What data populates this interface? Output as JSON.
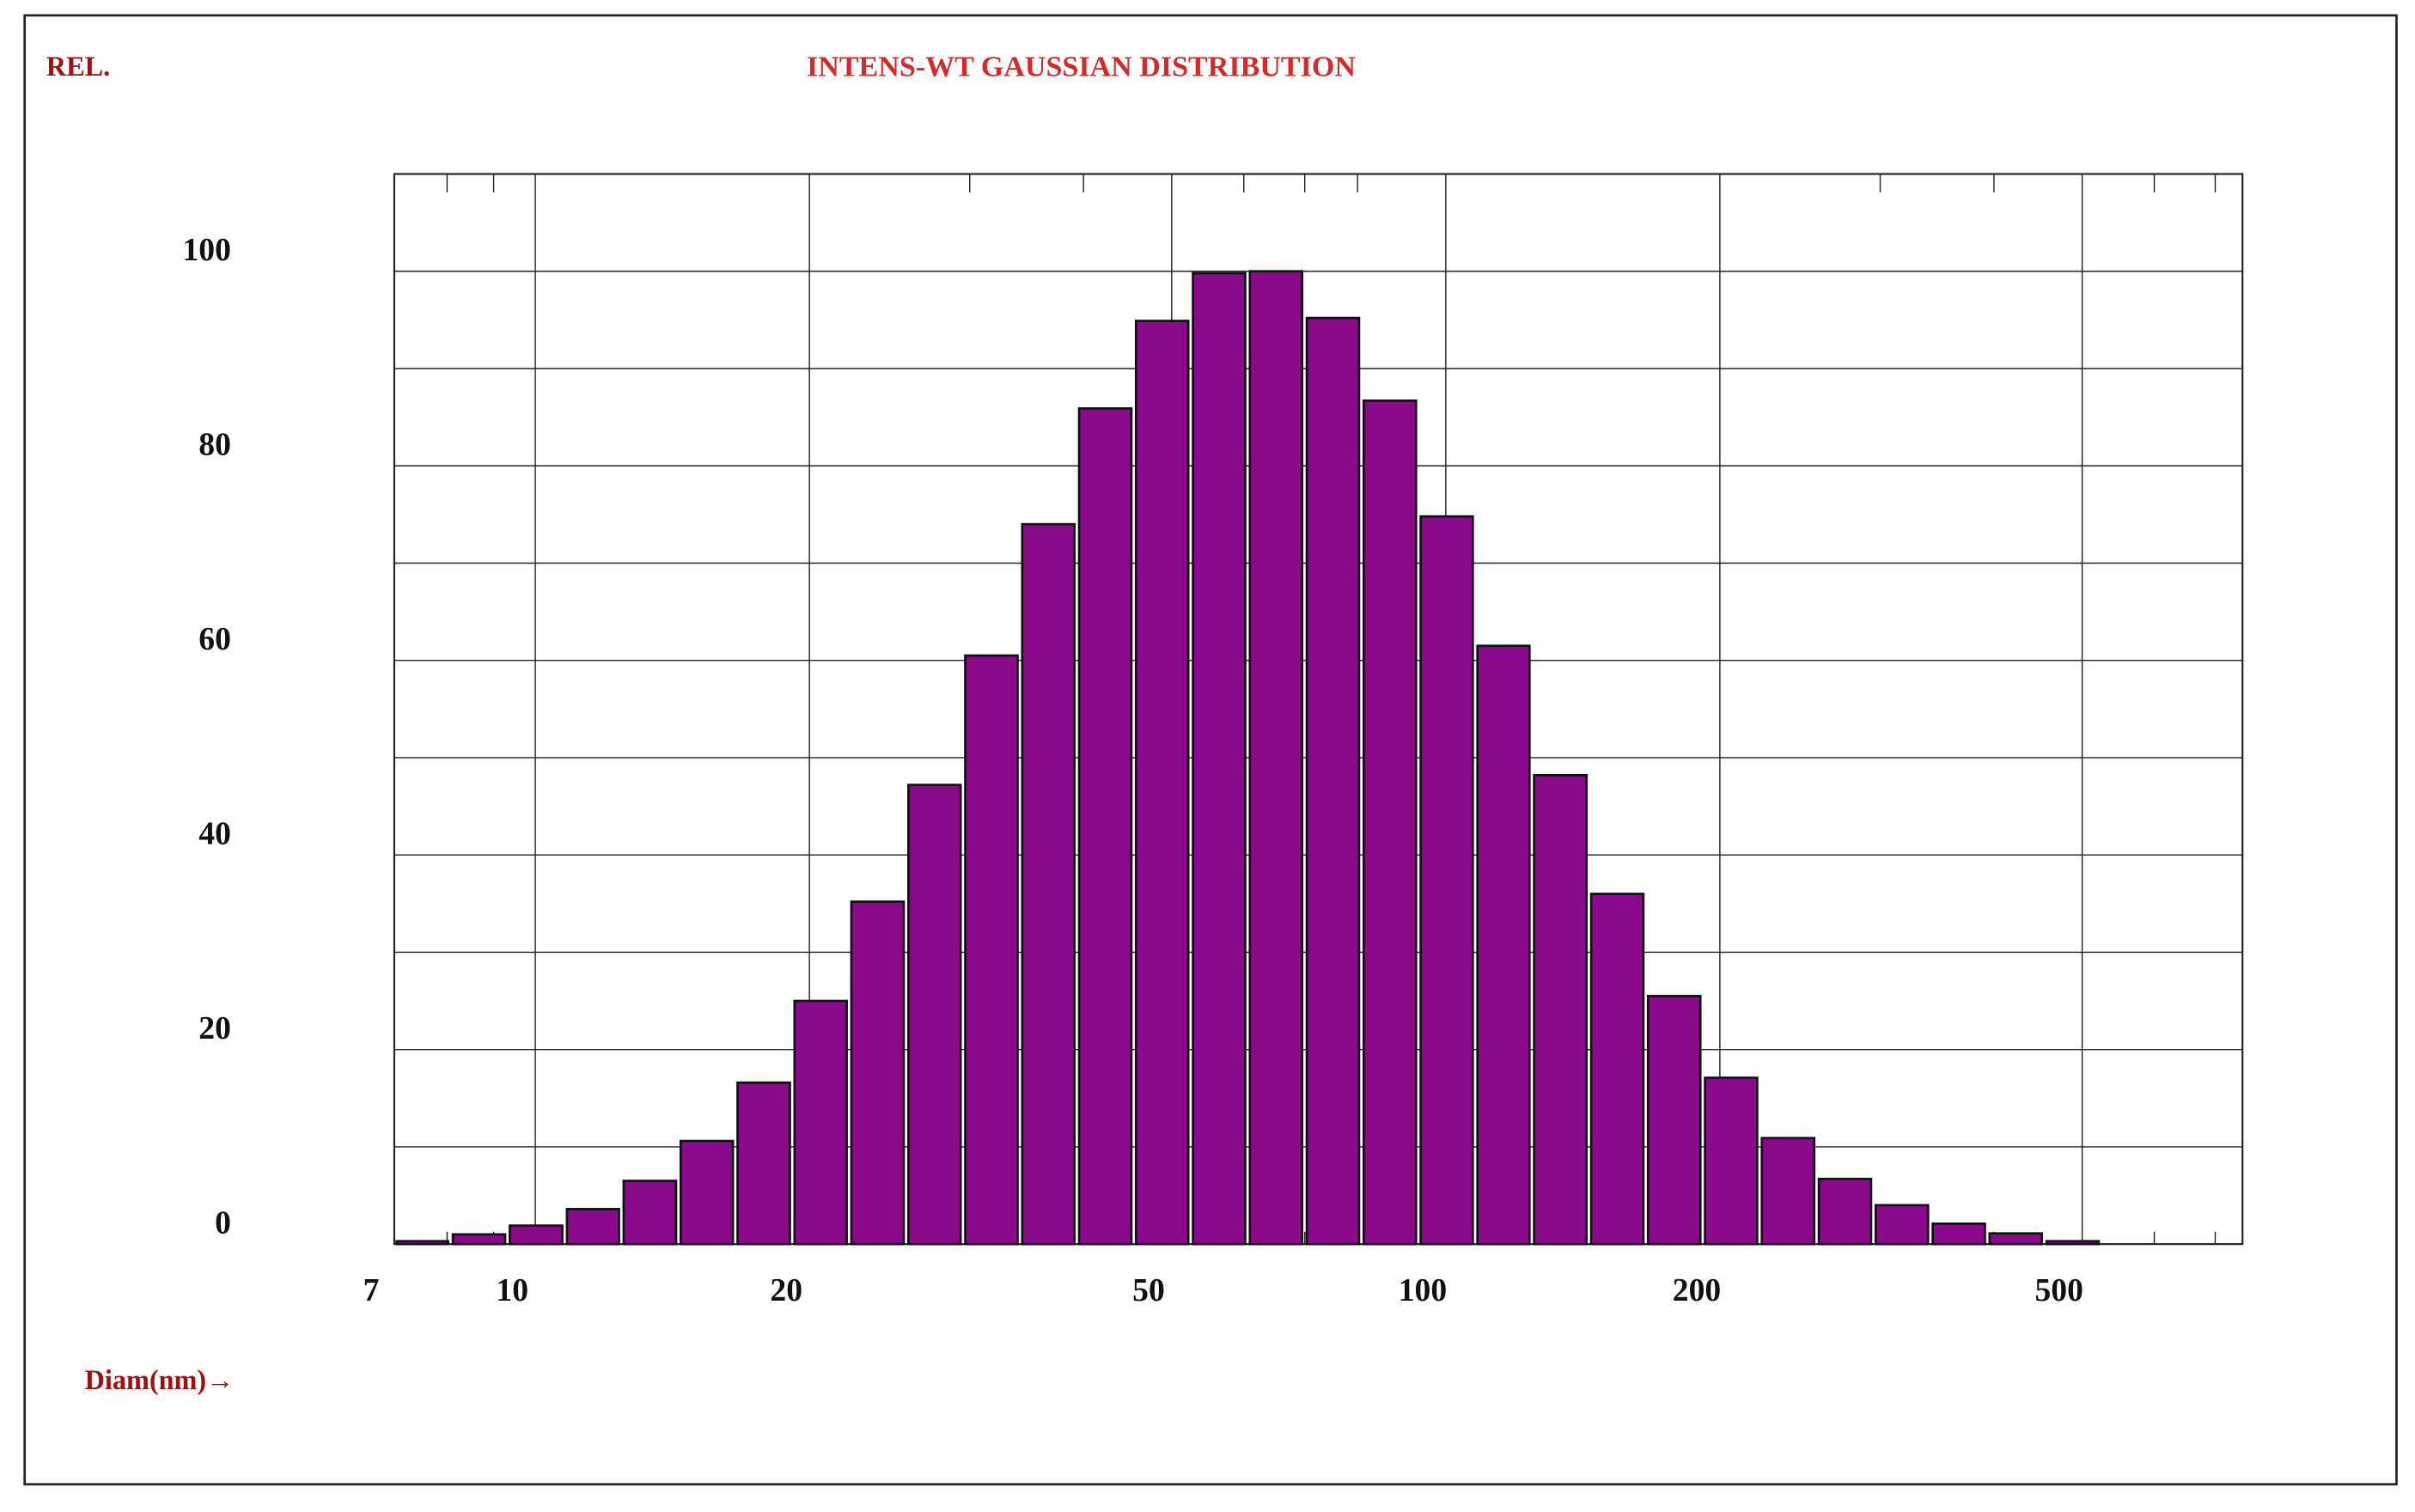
{
  "chart_data": {
    "type": "histogram",
    "title": "INTENS-WT GAUSSIAN DISTRIBUTION",
    "y_label": "REL.",
    "x_label": "Diam(nm)→",
    "bins": [
      7.0,
      8.07,
      9.32,
      10.77,
      12.43,
      14.36,
      16.58,
      19.15,
      22.11,
      25.54,
      29.49,
      34.06,
      39.33,
      45.42,
      52.45,
      60.57,
      69.95,
      80.78,
      93.3,
      107.7,
      124.3,
      143.6,
      165.8,
      191.5,
      221.1,
      255.4,
      294.9,
      340.6,
      393.3,
      454.2,
      524.5
    ],
    "values": [
      0.3,
      1,
      1.9,
      3.6,
      6.5,
      10.6,
      16.6,
      25,
      35.2,
      47.2,
      60.5,
      74,
      85.9,
      94.9,
      99.8,
      100,
      95.2,
      86.7,
      74.8,
      61.5,
      48.2,
      36,
      25.5,
      17.1,
      10.9,
      6.7,
      4,
      2.1,
      1.1,
      0.3
    ],
    "color": "#8b0a8b",
    "x_log": true,
    "grid": true,
    "xlim": [
      7,
      750
    ],
    "xticks": [
      7,
      10,
      20,
      50,
      100,
      200,
      500
    ],
    "x_minor_ticks": [
      8,
      9,
      30,
      40,
      60,
      70,
      80,
      300,
      400,
      600,
      700
    ],
    "ylim": [
      0,
      110
    ],
    "yticks": [
      0,
      20,
      40,
      60,
      80,
      100
    ],
    "y_minor_ticks": [
      10,
      30,
      50,
      70,
      90
    ]
  }
}
